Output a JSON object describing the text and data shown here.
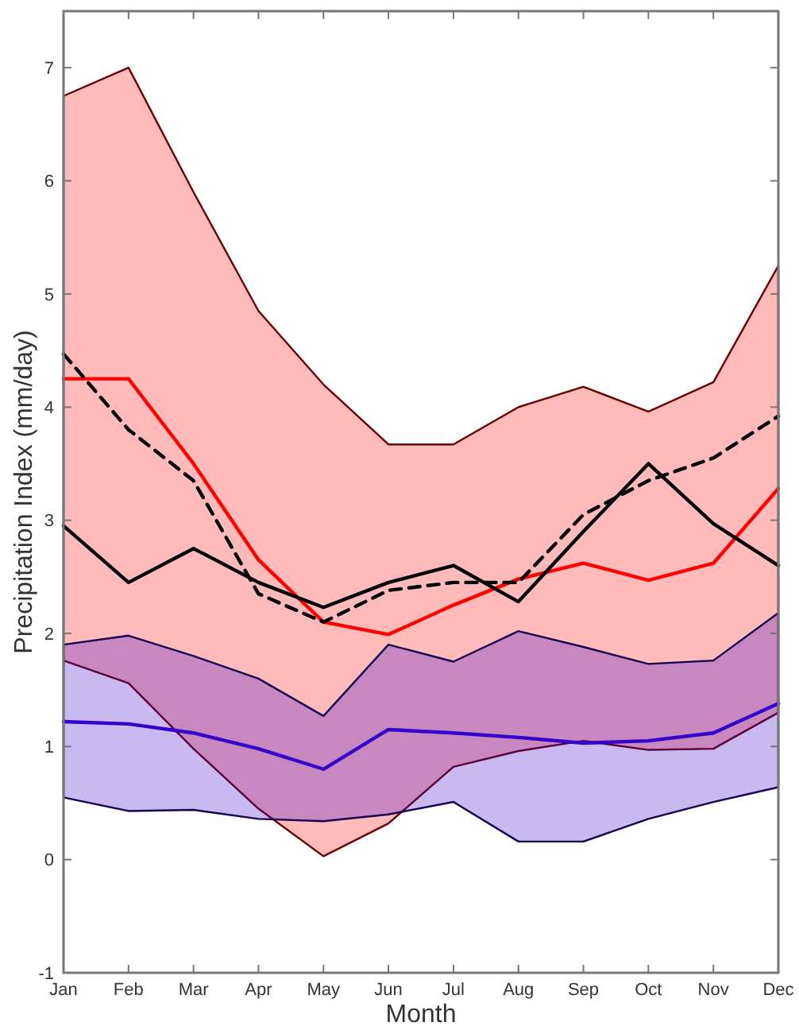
{
  "chart_data": {
    "type": "line",
    "xlabel": "Month",
    "ylabel": "Precipitation Index (mm/day)",
    "categories": [
      "Jan",
      "Feb",
      "Mar",
      "Apr",
      "May",
      "Jun",
      "Jul",
      "Aug",
      "Sep",
      "Oct",
      "Nov",
      "Dec"
    ],
    "ylim": [
      -1,
      7.5
    ],
    "yticks": [
      -1,
      0,
      1,
      2,
      3,
      4,
      5,
      6,
      7
    ],
    "grid": false,
    "marker": "none",
    "series": [
      {
        "color": "#ff0000",
        "line_style": "solid",
        "values": [
          4.25,
          4.25,
          3.5,
          2.65,
          2.1,
          1.99,
          2.25,
          2.48,
          2.62,
          2.47,
          2.62,
          3.28
        ],
        "lower": [
          1.76,
          1.56,
          0.98,
          0.45,
          0.03,
          0.32,
          0.82,
          0.96,
          1.05,
          0.97,
          0.98,
          1.3
        ],
        "upper": [
          6.75,
          7.0,
          5.9,
          4.85,
          4.2,
          3.67,
          3.67,
          4.0,
          4.18,
          3.96,
          4.22,
          5.25
        ]
      },
      {
        "color": "#3300cc",
        "line_style": "solid",
        "values": [
          1.22,
          1.2,
          1.12,
          0.98,
          0.8,
          1.15,
          1.12,
          1.08,
          1.03,
          1.05,
          1.12,
          1.38
        ],
        "lower": [
          0.55,
          0.43,
          0.44,
          0.36,
          0.34,
          0.4,
          0.51,
          0.16,
          0.16,
          0.36,
          0.51,
          0.64
        ],
        "upper": [
          1.9,
          1.98,
          1.8,
          1.6,
          1.27,
          1.9,
          1.75,
          2.02,
          1.88,
          1.73,
          1.76,
          2.18
        ]
      },
      {
        "color": "#000000",
        "line_style": "dashed",
        "values": [
          4.47,
          3.8,
          3.35,
          2.35,
          2.1,
          2.38,
          2.45,
          2.45,
          3.05,
          3.35,
          3.55,
          3.92
        ]
      },
      {
        "color": "#000000",
        "line_style": "solid",
        "values": [
          2.95,
          2.45,
          2.75,
          2.45,
          2.23,
          2.45,
          2.6,
          2.28,
          2.9,
          3.5,
          2.97,
          2.6
        ]
      }
    ]
  }
}
